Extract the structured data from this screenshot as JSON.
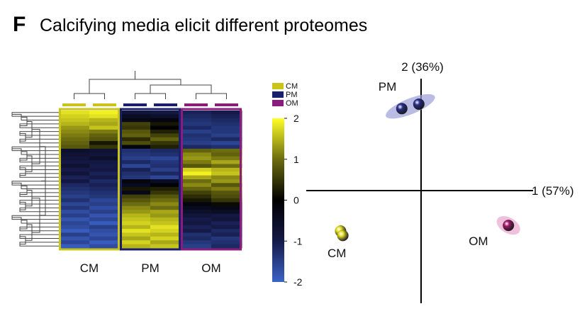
{
  "figure": {
    "panel_letter": "F",
    "title": "Calcifying media elicit different proteomes"
  },
  "colors": {
    "CM": "#c9c41a",
    "PM": "#1a1f6b",
    "OM": "#8a1c7c",
    "CM_sphere": "#e2de22",
    "PM_sphere": "#2a2f8a",
    "OM_sphere": "#a0186a",
    "colormap": [
      "#3c63c8",
      "#151a48",
      "#000000",
      "#6c6c10",
      "#ffff26"
    ]
  },
  "chart_data": [
    {
      "type": "heatmap",
      "group_labels": [
        "CM",
        "PM",
        "OM"
      ],
      "columns_per_group": 2,
      "rows": 36,
      "legend": {
        "entries": [
          "CM",
          "PM",
          "OM"
        ],
        "colorbar_ticks": [
          "2",
          "1",
          "0",
          "-1",
          "-2"
        ],
        "colorbar_range": [
          -2,
          2
        ]
      },
      "values": [
        [
          1.8,
          1.9,
          -0.8,
          -0.9,
          -1.1,
          -1.0
        ],
        [
          1.7,
          1.8,
          -0.5,
          -0.6,
          -1.2,
          -1.1
        ],
        [
          1.6,
          1.5,
          -0.3,
          -0.2,
          -1.3,
          -1.2
        ],
        [
          1.5,
          1.4,
          0.6,
          0.2,
          -1.4,
          -1.3
        ],
        [
          1.3,
          1.6,
          0.5,
          0.0,
          -1.2,
          -1.4
        ],
        [
          1.2,
          1.1,
          0.8,
          0.3,
          -1.5,
          -1.4
        ],
        [
          1.1,
          0.9,
          0.9,
          0.6,
          -1.3,
          -1.5
        ],
        [
          1.0,
          0.8,
          0.4,
          0.9,
          -1.4,
          -1.2
        ],
        [
          0.9,
          0.2,
          0.7,
          0.5,
          -1.5,
          -1.6
        ],
        [
          0.8,
          0.5,
          -0.2,
          0.3,
          -1.2,
          -1.3
        ],
        [
          -0.6,
          -0.7,
          -1.3,
          -1.2,
          0.9,
          1.0
        ],
        [
          -0.7,
          -0.8,
          -1.4,
          -1.3,
          1.2,
          0.9
        ],
        [
          -0.8,
          -0.6,
          -1.5,
          -1.6,
          1.3,
          1.1
        ],
        [
          -0.9,
          -0.9,
          -1.2,
          -1.4,
          1.1,
          1.4
        ],
        [
          -0.7,
          -1.0,
          -1.6,
          -1.3,
          0.8,
          1.0
        ],
        [
          -1.0,
          -0.9,
          -1.1,
          -1.5,
          1.7,
          1.5
        ],
        [
          -0.8,
          -1.1,
          -1.3,
          -1.2,
          1.9,
          1.6
        ],
        [
          -1.1,
          -1.0,
          -1.4,
          -1.6,
          1.4,
          1.2
        ],
        [
          -0.9,
          -1.2,
          -0.2,
          -0.5,
          1.0,
          1.3
        ],
        [
          -1.2,
          -1.1,
          -0.4,
          -0.1,
          1.2,
          0.8
        ],
        [
          -1.3,
          -1.2,
          0.2,
          0.3,
          0.9,
          1.1
        ],
        [
          -1.4,
          -1.3,
          -0.3,
          0.5,
          0.6,
          0.8
        ],
        [
          -1.5,
          -1.4,
          0.6,
          0.8,
          0.4,
          0.7
        ],
        [
          -1.3,
          -1.6,
          0.8,
          1.0,
          0.2,
          0.5
        ],
        [
          -1.6,
          -1.5,
          1.0,
          1.2,
          -0.2,
          0.1
        ],
        [
          -1.4,
          -1.7,
          1.2,
          1.0,
          -0.4,
          -0.3
        ],
        [
          -1.7,
          -1.5,
          1.3,
          1.4,
          -0.6,
          -0.5
        ],
        [
          -1.5,
          -1.8,
          1.5,
          1.3,
          -0.8,
          -0.9
        ],
        [
          -1.8,
          -1.6,
          1.6,
          1.5,
          -1.0,
          -0.8
        ],
        [
          -1.6,
          -1.9,
          1.7,
          1.6,
          -0.9,
          -1.1
        ],
        [
          -1.7,
          -1.5,
          1.5,
          1.8,
          -1.1,
          -1.0
        ],
        [
          -1.9,
          -1.7,
          1.8,
          1.7,
          -1.0,
          -1.2
        ],
        [
          -1.5,
          -1.8,
          1.6,
          1.5,
          -1.3,
          -1.1
        ],
        [
          -1.8,
          -1.6,
          1.4,
          1.7,
          -1.2,
          -1.4
        ],
        [
          -1.6,
          -1.9,
          1.7,
          1.4,
          -1.4,
          -1.3
        ],
        [
          -1.9,
          -1.7,
          1.5,
          1.6,
          -1.5,
          -1.2
        ]
      ]
    },
    {
      "type": "scatter",
      "axes": {
        "x_label": "1 (57%)",
        "y_label": "2 (36%)"
      },
      "xlim": [
        -1,
        1
      ],
      "ylim": [
        -1,
        1
      ],
      "groups": [
        {
          "name": "PM",
          "points": [
            [
              -0.17,
              0.73
            ],
            [
              -0.02,
              0.77
            ]
          ]
        },
        {
          "name": "CM",
          "points": [
            [
              -0.71,
              -0.36
            ],
            [
              -0.69,
              -0.4
            ]
          ]
        },
        {
          "name": "OM",
          "points": [
            [
              0.77,
              -0.31
            ]
          ]
        }
      ]
    }
  ]
}
